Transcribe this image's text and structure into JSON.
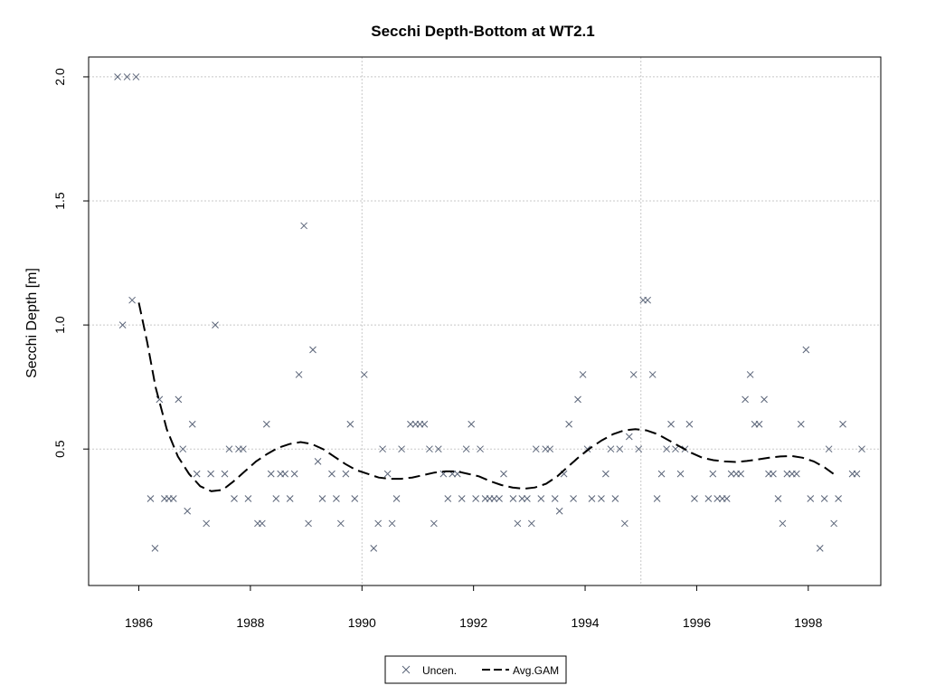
{
  "chart_data": {
    "type": "scatter",
    "title": "Secchi Depth-Bottom at WT2.1",
    "xlabel": "",
    "ylabel": "Secchi Depth [m]",
    "xlim": [
      1985.1,
      1999.3
    ],
    "ylim": [
      -0.05,
      2.08
    ],
    "x_ticks": [
      1986,
      1988,
      1990,
      1992,
      1994,
      1996,
      1998
    ],
    "y_ticks": [
      0.5,
      1.0,
      1.5,
      2.0
    ],
    "y_tick_labels": [
      "0.5",
      "1.0",
      "1.5",
      "2.0"
    ],
    "grid": true,
    "grid_x": [
      1990,
      1995
    ],
    "grid_y": [
      0.5,
      1.0,
      1.5,
      2.0
    ],
    "legend_position": "bottom",
    "series": [
      {
        "name": "Uncen.",
        "style": "x-marker",
        "color": "#5a6478",
        "points": [
          [
            1985.62,
            2.0
          ],
          [
            1985.79,
            2.0
          ],
          [
            1985.95,
            2.0
          ],
          [
            1985.71,
            1.0
          ],
          [
            1985.88,
            1.1
          ],
          [
            1986.21,
            0.3
          ],
          [
            1986.29,
            0.1
          ],
          [
            1986.37,
            0.7
          ],
          [
            1986.46,
            0.3
          ],
          [
            1986.54,
            0.3
          ],
          [
            1986.62,
            0.3
          ],
          [
            1986.71,
            0.7
          ],
          [
            1986.79,
            0.5
          ],
          [
            1986.87,
            0.25
          ],
          [
            1986.96,
            0.6
          ],
          [
            1987.04,
            0.4
          ],
          [
            1987.21,
            0.2
          ],
          [
            1987.29,
            0.4
          ],
          [
            1987.37,
            1.0
          ],
          [
            1987.54,
            0.4
          ],
          [
            1987.62,
            0.5
          ],
          [
            1987.71,
            0.3
          ],
          [
            1987.79,
            0.5
          ],
          [
            1987.87,
            0.5
          ],
          [
            1987.96,
            0.3
          ],
          [
            1988.13,
            0.2
          ],
          [
            1988.21,
            0.2
          ],
          [
            1988.29,
            0.6
          ],
          [
            1988.37,
            0.4
          ],
          [
            1988.46,
            0.3
          ],
          [
            1988.54,
            0.4
          ],
          [
            1988.62,
            0.4
          ],
          [
            1988.71,
            0.3
          ],
          [
            1988.79,
            0.4
          ],
          [
            1988.87,
            0.8
          ],
          [
            1988.96,
            1.4
          ],
          [
            1989.04,
            0.2
          ],
          [
            1989.12,
            0.9
          ],
          [
            1989.21,
            0.45
          ],
          [
            1989.29,
            0.3
          ],
          [
            1989.46,
            0.4
          ],
          [
            1989.54,
            0.3
          ],
          [
            1989.62,
            0.2
          ],
          [
            1989.71,
            0.4
          ],
          [
            1989.79,
            0.6
          ],
          [
            1989.87,
            0.3
          ],
          [
            1990.04,
            0.8
          ],
          [
            1990.21,
            0.1
          ],
          [
            1990.29,
            0.2
          ],
          [
            1990.37,
            0.5
          ],
          [
            1990.46,
            0.4
          ],
          [
            1990.54,
            0.2
          ],
          [
            1990.62,
            0.3
          ],
          [
            1990.71,
            0.5
          ],
          [
            1990.87,
            0.6
          ],
          [
            1990.96,
            0.6
          ],
          [
            1991.04,
            0.6
          ],
          [
            1991.12,
            0.6
          ],
          [
            1991.21,
            0.5
          ],
          [
            1991.29,
            0.2
          ],
          [
            1991.37,
            0.5
          ],
          [
            1991.46,
            0.4
          ],
          [
            1991.54,
            0.3
          ],
          [
            1991.62,
            0.4
          ],
          [
            1991.71,
            0.4
          ],
          [
            1991.79,
            0.3
          ],
          [
            1991.87,
            0.5
          ],
          [
            1991.96,
            0.6
          ],
          [
            1992.04,
            0.3
          ],
          [
            1992.12,
            0.5
          ],
          [
            1992.21,
            0.3
          ],
          [
            1992.29,
            0.3
          ],
          [
            1992.37,
            0.3
          ],
          [
            1992.46,
            0.3
          ],
          [
            1992.54,
            0.4
          ],
          [
            1992.71,
            0.3
          ],
          [
            1992.79,
            0.2
          ],
          [
            1992.87,
            0.3
          ],
          [
            1992.96,
            0.3
          ],
          [
            1993.04,
            0.2
          ],
          [
            1993.12,
            0.5
          ],
          [
            1993.21,
            0.3
          ],
          [
            1993.29,
            0.5
          ],
          [
            1993.37,
            0.5
          ],
          [
            1993.46,
            0.3
          ],
          [
            1993.54,
            0.25
          ],
          [
            1993.62,
            0.4
          ],
          [
            1993.71,
            0.6
          ],
          [
            1993.79,
            0.3
          ],
          [
            1993.87,
            0.7
          ],
          [
            1993.96,
            0.8
          ],
          [
            1994.04,
            0.5
          ],
          [
            1994.12,
            0.3
          ],
          [
            1994.29,
            0.3
          ],
          [
            1994.37,
            0.4
          ],
          [
            1994.46,
            0.5
          ],
          [
            1994.54,
            0.3
          ],
          [
            1994.62,
            0.5
          ],
          [
            1994.71,
            0.2
          ],
          [
            1994.79,
            0.55
          ],
          [
            1994.87,
            0.8
          ],
          [
            1994.96,
            0.5
          ],
          [
            1995.04,
            1.1
          ],
          [
            1995.12,
            1.1
          ],
          [
            1995.21,
            0.8
          ],
          [
            1995.29,
            0.3
          ],
          [
            1995.37,
            0.4
          ],
          [
            1995.46,
            0.5
          ],
          [
            1995.54,
            0.6
          ],
          [
            1995.62,
            0.5
          ],
          [
            1995.71,
            0.4
          ],
          [
            1995.79,
            0.5
          ],
          [
            1995.87,
            0.6
          ],
          [
            1995.96,
            0.3
          ],
          [
            1996.21,
            0.3
          ],
          [
            1996.29,
            0.4
          ],
          [
            1996.37,
            0.3
          ],
          [
            1996.46,
            0.3
          ],
          [
            1996.54,
            0.3
          ],
          [
            1996.62,
            0.4
          ],
          [
            1996.71,
            0.4
          ],
          [
            1996.79,
            0.4
          ],
          [
            1996.87,
            0.7
          ],
          [
            1996.96,
            0.8
          ],
          [
            1997.04,
            0.6
          ],
          [
            1997.12,
            0.6
          ],
          [
            1997.21,
            0.7
          ],
          [
            1997.29,
            0.4
          ],
          [
            1997.37,
            0.4
          ],
          [
            1997.46,
            0.3
          ],
          [
            1997.54,
            0.2
          ],
          [
            1997.62,
            0.4
          ],
          [
            1997.71,
            0.4
          ],
          [
            1997.79,
            0.4
          ],
          [
            1997.87,
            0.6
          ],
          [
            1997.96,
            0.9
          ],
          [
            1998.04,
            0.3
          ],
          [
            1998.21,
            0.1
          ],
          [
            1998.29,
            0.3
          ],
          [
            1998.37,
            0.5
          ],
          [
            1998.46,
            0.2
          ],
          [
            1998.54,
            0.3
          ],
          [
            1998.62,
            0.6
          ],
          [
            1998.79,
            0.4
          ],
          [
            1998.87,
            0.4
          ],
          [
            1998.96,
            0.5
          ]
        ]
      },
      {
        "name": "Avg.GAM",
        "style": "dashed-line",
        "color": "#000000",
        "points": [
          [
            1986.0,
            1.09
          ],
          [
            1986.15,
            0.93
          ],
          [
            1986.3,
            0.75
          ],
          [
            1986.5,
            0.58
          ],
          [
            1986.7,
            0.47
          ],
          [
            1986.9,
            0.4
          ],
          [
            1987.1,
            0.35
          ],
          [
            1987.3,
            0.33
          ],
          [
            1987.5,
            0.335
          ],
          [
            1987.7,
            0.37
          ],
          [
            1987.9,
            0.41
          ],
          [
            1988.1,
            0.45
          ],
          [
            1988.3,
            0.48
          ],
          [
            1988.5,
            0.505
          ],
          [
            1988.7,
            0.52
          ],
          [
            1988.9,
            0.528
          ],
          [
            1989.1,
            0.52
          ],
          [
            1989.3,
            0.5
          ],
          [
            1989.5,
            0.47
          ],
          [
            1989.7,
            0.44
          ],
          [
            1989.9,
            0.415
          ],
          [
            1990.1,
            0.4
          ],
          [
            1990.3,
            0.385
          ],
          [
            1990.5,
            0.38
          ],
          [
            1990.7,
            0.38
          ],
          [
            1990.9,
            0.385
          ],
          [
            1991.1,
            0.395
          ],
          [
            1991.3,
            0.405
          ],
          [
            1991.5,
            0.41
          ],
          [
            1991.7,
            0.41
          ],
          [
            1991.9,
            0.4
          ],
          [
            1992.1,
            0.39
          ],
          [
            1992.3,
            0.37
          ],
          [
            1992.5,
            0.355
          ],
          [
            1992.7,
            0.345
          ],
          [
            1992.9,
            0.34
          ],
          [
            1993.1,
            0.345
          ],
          [
            1993.3,
            0.36
          ],
          [
            1993.5,
            0.39
          ],
          [
            1993.7,
            0.43
          ],
          [
            1993.9,
            0.47
          ],
          [
            1994.1,
            0.505
          ],
          [
            1994.3,
            0.535
          ],
          [
            1994.5,
            0.56
          ],
          [
            1994.7,
            0.575
          ],
          [
            1994.9,
            0.58
          ],
          [
            1995.1,
            0.575
          ],
          [
            1995.3,
            0.56
          ],
          [
            1995.5,
            0.535
          ],
          [
            1995.7,
            0.51
          ],
          [
            1995.9,
            0.485
          ],
          [
            1996.1,
            0.465
          ],
          [
            1996.3,
            0.455
          ],
          [
            1996.5,
            0.45
          ],
          [
            1996.7,
            0.448
          ],
          [
            1996.9,
            0.452
          ],
          [
            1997.1,
            0.458
          ],
          [
            1997.3,
            0.465
          ],
          [
            1997.5,
            0.47
          ],
          [
            1997.7,
            0.472
          ],
          [
            1997.9,
            0.465
          ],
          [
            1998.1,
            0.45
          ],
          [
            1998.3,
            0.425
          ],
          [
            1998.45,
            0.4
          ]
        ]
      }
    ]
  }
}
